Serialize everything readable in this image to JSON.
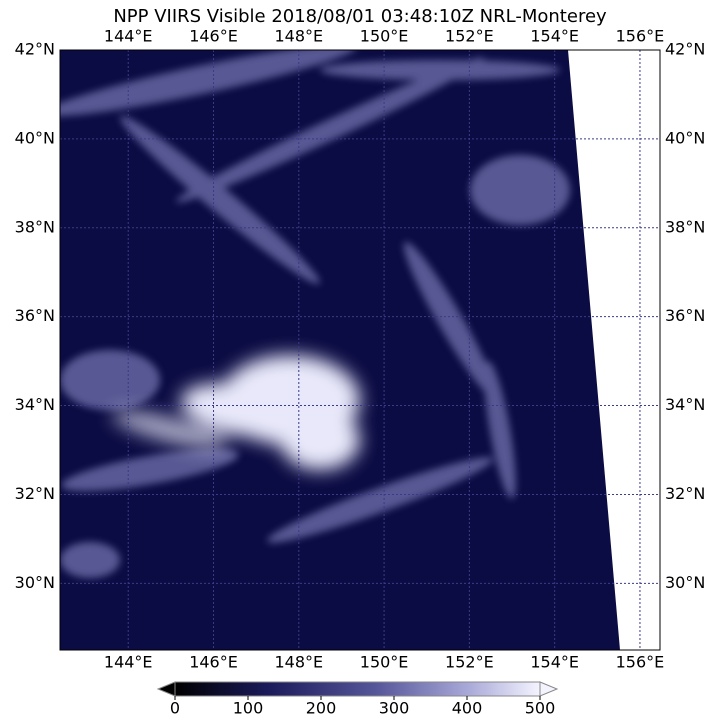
{
  "title": "NPP VIIRS Visible 2018/08/01 03:48:10Z NRL-Monterey",
  "map": {
    "lonlim": [
      142.4,
      156.47
    ],
    "latlim": [
      28.5,
      42
    ],
    "lonticks": [
      {
        "value": 144,
        "label": "144°E"
      },
      {
        "value": 146,
        "label": "146°E"
      },
      {
        "value": 148,
        "label": "148°E"
      },
      {
        "value": 150,
        "label": "150°E"
      },
      {
        "value": 152,
        "label": "152°E"
      },
      {
        "value": 154,
        "label": "154°E"
      },
      {
        "value": 156,
        "label": "156°E"
      }
    ],
    "latticks": [
      {
        "value": 30,
        "label": "30°N"
      },
      {
        "value": 32,
        "label": "32°N"
      },
      {
        "value": 34,
        "label": "34°N"
      },
      {
        "value": 36,
        "label": "36°N"
      },
      {
        "value": 38,
        "label": "38°N"
      },
      {
        "value": 40,
        "label": "40°N"
      },
      {
        "value": 42,
        "label": "42°N"
      }
    ]
  },
  "colorbar": {
    "lim": [
      0,
      500
    ],
    "ticks": [
      0,
      100,
      200,
      300,
      400,
      500
    ]
  }
}
